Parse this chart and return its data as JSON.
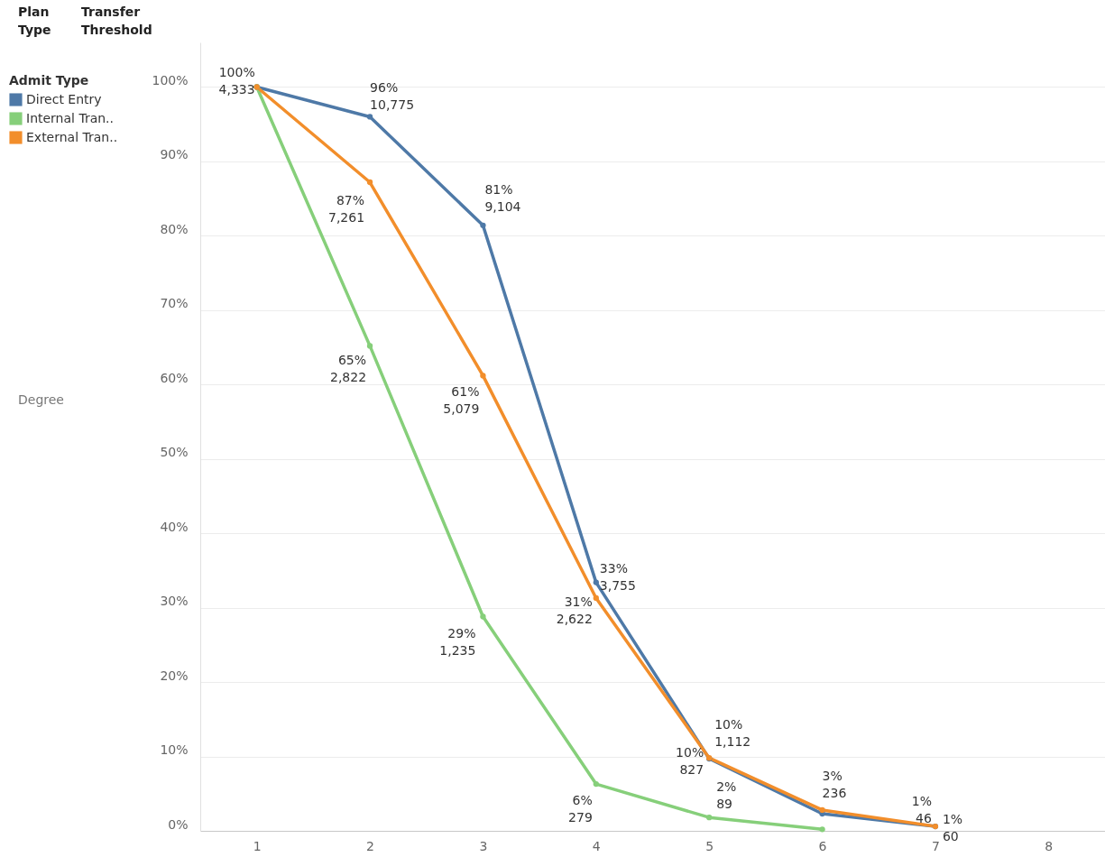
{
  "chart_data": {
    "type": "line",
    "legend_title": "Admit Type",
    "legend": "top left",
    "grid": "y",
    "marker": "circle",
    "line_style": "solid",
    "annotations": [
      "Plan Type",
      "Transfer Threshold",
      "Degree"
    ],
    "xlim": [
      0.5,
      8.5
    ],
    "xticks": [
      1,
      2,
      3,
      4,
      5,
      6,
      7,
      8
    ],
    "ylim": [
      0,
      106
    ],
    "yticks": [
      {
        "value": 0,
        "label": "0%"
      },
      {
        "value": 10,
        "label": "10%"
      },
      {
        "value": 20,
        "label": "20%"
      },
      {
        "value": 30,
        "label": "30%"
      },
      {
        "value": 40,
        "label": "40%"
      },
      {
        "value": 50,
        "label": "50%"
      },
      {
        "value": 60,
        "label": "60%"
      },
      {
        "value": 70,
        "label": "70%"
      },
      {
        "value": 80,
        "label": "80%"
      },
      {
        "value": 90,
        "label": "90%"
      },
      {
        "value": 100,
        "label": "100%"
      }
    ],
    "series": [
      {
        "name": "Direct Entry",
        "color": "#4e79a7",
        "x": [
          1,
          2,
          3,
          4,
          5,
          6,
          7
        ],
        "values": [
          100,
          96,
          81.4,
          33.4,
          9.7,
          2.3,
          0.6
        ],
        "value_labels": [
          null,
          "96%\n10,775",
          "81%\n9,104",
          "33%\n3,755",
          "10%\n1,112",
          null,
          "1%\n60"
        ]
      },
      {
        "name": "Internal Tran..",
        "color": "#86cf7a",
        "x": [
          1,
          2,
          3,
          4,
          5,
          6
        ],
        "values": [
          100,
          65.2,
          28.8,
          6.3,
          1.8,
          0.2
        ],
        "value_labels": [
          "100%\n4,333",
          "65%\n2,822",
          "29%\n1,235",
          "6%\n279",
          "2%\n89",
          null
        ]
      },
      {
        "name": "External Tran..",
        "color": "#f28e2b",
        "x": [
          1,
          2,
          3,
          4,
          5,
          6,
          7
        ],
        "values": [
          100,
          87.2,
          61.2,
          31.3,
          9.8,
          2.8,
          0.6
        ],
        "value_labels": [
          null,
          "87%\n7,261",
          "61%\n5,079",
          "31%\n2,622",
          "10%\n827",
          "3%\n236",
          "1%\n46"
        ]
      }
    ]
  }
}
